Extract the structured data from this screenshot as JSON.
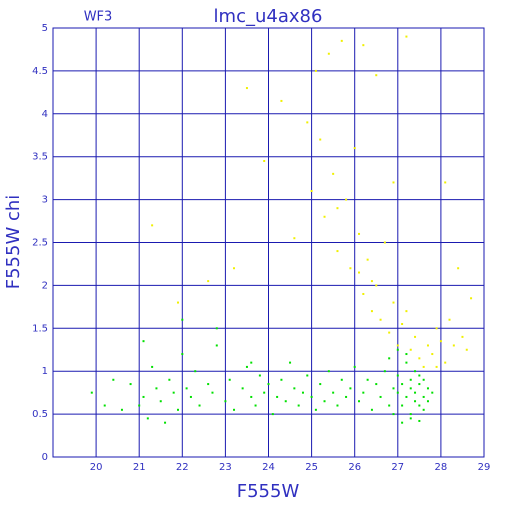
{
  "chart_data": {
    "type": "scatter",
    "title": "lmc_u4ax86",
    "subtitle": "WF3",
    "x_label": "F555W",
    "y_label": "F555W chi",
    "xlim": [
      19,
      29
    ],
    "xticks": [
      20,
      21,
      22,
      23,
      24,
      25,
      26,
      27,
      28,
      29
    ],
    "ylim": [
      0,
      5
    ],
    "yticks": [
      0,
      0.5,
      1,
      1.5,
      2,
      2.5,
      3,
      3.5,
      4,
      4.5,
      5
    ],
    "grid": true,
    "grid_color": "#1a1ab0",
    "text_color": "#3030c0",
    "series": [
      {
        "color": "#00e000",
        "x": [
          19.9,
          20.4,
          20.6,
          20.8,
          21.0,
          21.1,
          21.2,
          21.3,
          21.4,
          21.5,
          21.7,
          21.8,
          21.9,
          22.0,
          22.1,
          22.2,
          22.3,
          22.4,
          22.6,
          22.7,
          22.8,
          23.0,
          23.1,
          23.2,
          23.4,
          23.5,
          23.6,
          23.7,
          23.8,
          23.9,
          24.0,
          24.1,
          24.2,
          24.3,
          24.4,
          24.5,
          24.6,
          24.7,
          24.8,
          24.9,
          25.0,
          25.1,
          25.2,
          25.3,
          25.4,
          25.5,
          25.6,
          25.7,
          25.8,
          25.9,
          26.0,
          26.1,
          26.2,
          26.3,
          26.4,
          26.5,
          26.6,
          26.7,
          26.8,
          26.9,
          27.0,
          27.0,
          27.1,
          27.1,
          27.2,
          27.2,
          27.3,
          27.3,
          27.3,
          27.4,
          27.4,
          27.4,
          27.5,
          27.5,
          27.5,
          27.6,
          27.6,
          27.6,
          27.7,
          27.7,
          27.2,
          27.0,
          26.8,
          21.1,
          22.0,
          22.8,
          23.6,
          20.2,
          21.6,
          27.3,
          27.5,
          26.9,
          27.1,
          27.8
        ],
        "values": [
          0.75,
          0.9,
          0.55,
          0.85,
          0.6,
          0.7,
          0.45,
          1.05,
          0.8,
          0.65,
          0.9,
          0.75,
          0.55,
          1.2,
          0.8,
          0.7,
          1.0,
          0.6,
          0.85,
          0.75,
          1.3,
          0.65,
          0.9,
          0.55,
          0.8,
          1.05,
          0.7,
          0.6,
          0.95,
          0.75,
          0.85,
          0.5,
          0.7,
          0.9,
          0.65,
          1.1,
          0.8,
          0.6,
          0.75,
          0.95,
          0.7,
          0.55,
          0.85,
          0.65,
          1.0,
          0.75,
          0.6,
          0.9,
          0.7,
          0.8,
          1.05,
          0.65,
          0.75,
          0.9,
          0.55,
          0.85,
          0.7,
          1.0,
          0.6,
          0.8,
          0.75,
          0.95,
          0.6,
          0.85,
          1.1,
          0.7,
          0.5,
          0.9,
          0.8,
          0.65,
          1.0,
          0.75,
          0.85,
          0.6,
          0.95,
          0.7,
          0.55,
          0.9,
          0.8,
          0.65,
          1.2,
          1.25,
          1.15,
          1.35,
          1.6,
          1.5,
          1.1,
          0.6,
          0.4,
          0.45,
          0.42,
          0.5,
          0.4,
          0.75
        ]
      },
      {
        "color": "#f0f000",
        "x": [
          21.3,
          21.9,
          22.6,
          23.2,
          23.5,
          23.9,
          24.3,
          24.6,
          24.9,
          25.0,
          25.1,
          25.2,
          25.3,
          25.4,
          25.5,
          25.6,
          25.7,
          25.8,
          25.9,
          26.0,
          26.1,
          26.2,
          26.2,
          26.3,
          26.4,
          26.5,
          26.6,
          26.7,
          26.8,
          26.9,
          27.0,
          27.1,
          27.2,
          27.3,
          27.4,
          27.5,
          27.6,
          27.7,
          27.8,
          27.9,
          28.0,
          28.1,
          28.2,
          28.3,
          28.4,
          28.5,
          28.6,
          28.7,
          27.2,
          26.9,
          26.5,
          25.6,
          26.1,
          26.4,
          27.9,
          28.1
        ],
        "values": [
          2.7,
          1.8,
          2.05,
          2.2,
          4.3,
          3.45,
          4.15,
          2.55,
          3.9,
          3.1,
          4.5,
          3.7,
          2.8,
          4.7,
          3.3,
          2.4,
          4.85,
          3.0,
          2.2,
          3.6,
          2.6,
          4.8,
          1.9,
          2.3,
          1.7,
          2.0,
          1.6,
          2.5,
          1.45,
          1.8,
          1.3,
          1.55,
          1.7,
          1.25,
          1.4,
          1.15,
          1.05,
          1.3,
          1.2,
          1.5,
          1.35,
          1.1,
          1.6,
          1.3,
          2.2,
          1.4,
          1.25,
          1.85,
          4.9,
          3.2,
          4.45,
          2.9,
          2.15,
          2.05,
          1.05,
          3.2
        ]
      }
    ]
  }
}
